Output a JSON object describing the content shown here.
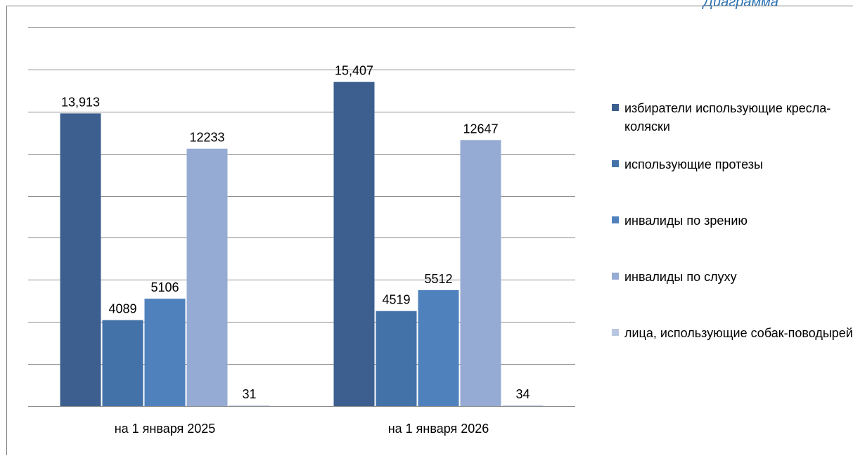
{
  "heading": "Диаграмма",
  "chart_data": {
    "type": "bar",
    "categories": [
      "на 1 января 2025",
      "на 1 января 2026"
    ],
    "series": [
      {
        "name": "избиратели использующие кресла-коляски",
        "values": [
          13913,
          15407
        ],
        "labels": [
          "13,913",
          "15,407"
        ],
        "color": "#3c5f8f"
      },
      {
        "name": "использующие протезы",
        "values": [
          4089,
          4519
        ],
        "labels": [
          "4089",
          "4519"
        ],
        "color": "#4372a8"
      },
      {
        "name": "инвалиды по зрению",
        "values": [
          5106,
          5512
        ],
        "labels": [
          "5106",
          "5512"
        ],
        "color": "#4f81bd"
      },
      {
        "name": "инвалиды по слуху",
        "values": [
          12233,
          12647
        ],
        "labels": [
          "12233",
          "12647"
        ],
        "color": "#95abd3"
      },
      {
        "name": "лица, использующие собак-поводырей",
        "values": [
          31,
          34
        ],
        "labels": [
          "31",
          "34"
        ],
        "color": "#b8c6e1"
      }
    ],
    "ylim": [
      0,
      18000
    ],
    "grid": true,
    "legend_position": "right"
  }
}
